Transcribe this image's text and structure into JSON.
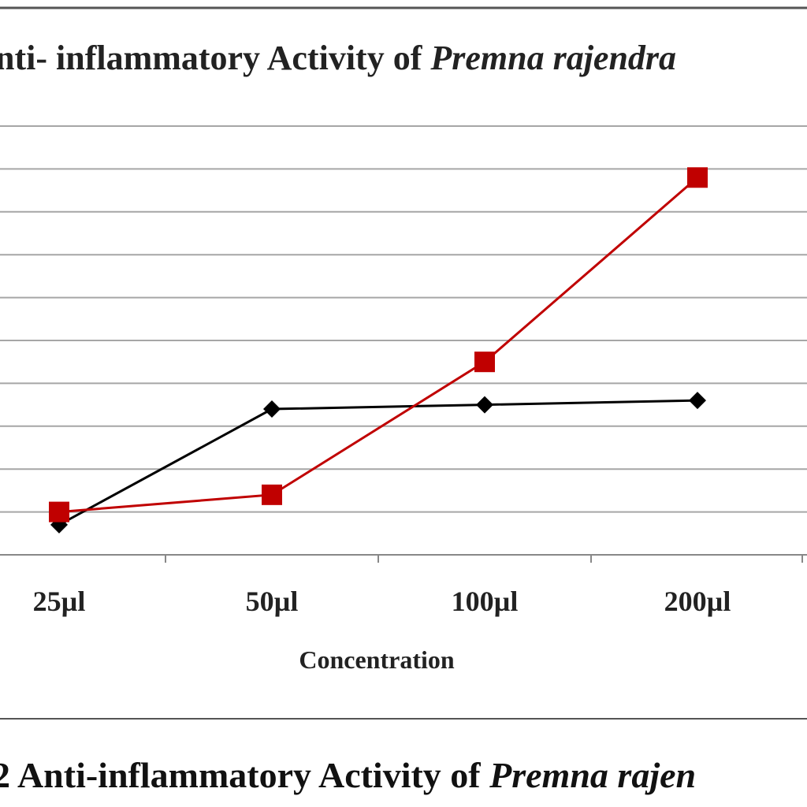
{
  "chart_data": {
    "type": "line",
    "title_plain": "nti- inflammatory Activity of ",
    "title_italic": "Premna rajendra",
    "xlabel": "Concentration",
    "categories": [
      "25µl",
      "50µl",
      "100µl",
      "200µl"
    ],
    "series": [
      {
        "values": [
          0.7,
          3.4,
          3.5,
          3.6
        ],
        "color": "#000000",
        "marker": "diamond"
      },
      {
        "values": [
          1.0,
          1.4,
          4.5,
          8.8
        ],
        "color": "#c00000",
        "marker": "square"
      }
    ],
    "ylim": [
      0,
      10
    ],
    "gridlines": 10,
    "grid": true,
    "legend": "none"
  },
  "caption": {
    "plain": "2 Anti-inflammatory  Activity of ",
    "italic": "Premna rajen"
  }
}
